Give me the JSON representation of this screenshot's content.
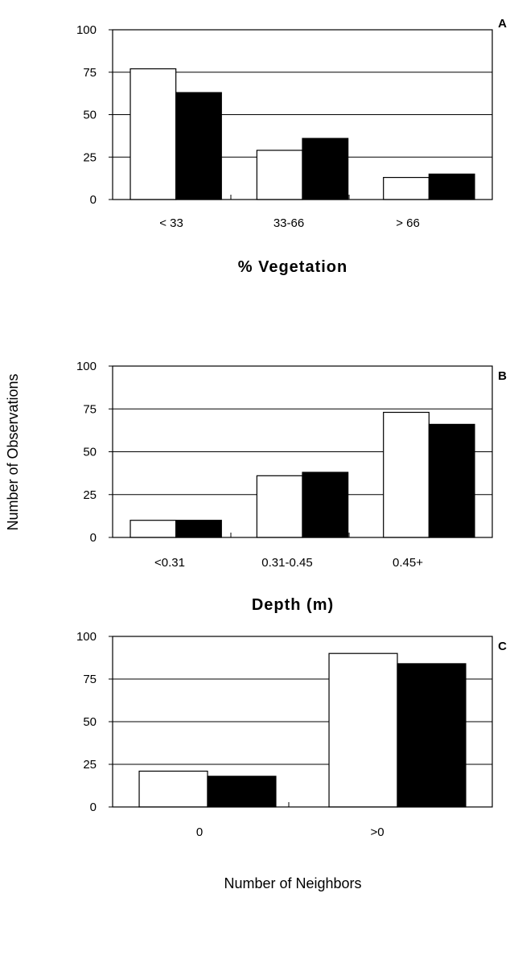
{
  "figure": {
    "ylabel": "Number of Observations"
  },
  "chart_data": [
    {
      "type": "bar",
      "panel": "A",
      "xlabel": "% Vegetation",
      "categories": [
        "< 33",
        "33-66",
        "> 66"
      ],
      "series": [
        {
          "values": [
            77,
            29,
            13
          ],
          "color": "#ffffff"
        },
        {
          "values": [
            63,
            36,
            15
          ],
          "color": "#000000"
        }
      ],
      "ylim": [
        0,
        100
      ],
      "yticks": [
        0,
        25,
        50,
        75,
        100
      ],
      "grid": true
    },
    {
      "type": "bar",
      "panel": "B",
      "xlabel": "Depth (m)",
      "categories": [
        "<0.31",
        "0.31-0.45",
        "0.45+"
      ],
      "series": [
        {
          "values": [
            10,
            36,
            73
          ],
          "color": "#ffffff"
        },
        {
          "values": [
            10,
            38,
            66
          ],
          "color": "#000000"
        }
      ],
      "ylim": [
        0,
        100
      ],
      "yticks": [
        0,
        25,
        50,
        75,
        100
      ],
      "grid": true
    },
    {
      "type": "bar",
      "panel": "C",
      "xlabel": "Number of Neighbors",
      "categories": [
        "0",
        ">0"
      ],
      "series": [
        {
          "values": [
            21,
            90
          ],
          "color": "#ffffff"
        },
        {
          "values": [
            18,
            84
          ],
          "color": "#000000"
        }
      ],
      "ylim": [
        0,
        100
      ],
      "yticks": [
        0,
        25,
        50,
        75,
        100
      ],
      "grid": true
    }
  ]
}
